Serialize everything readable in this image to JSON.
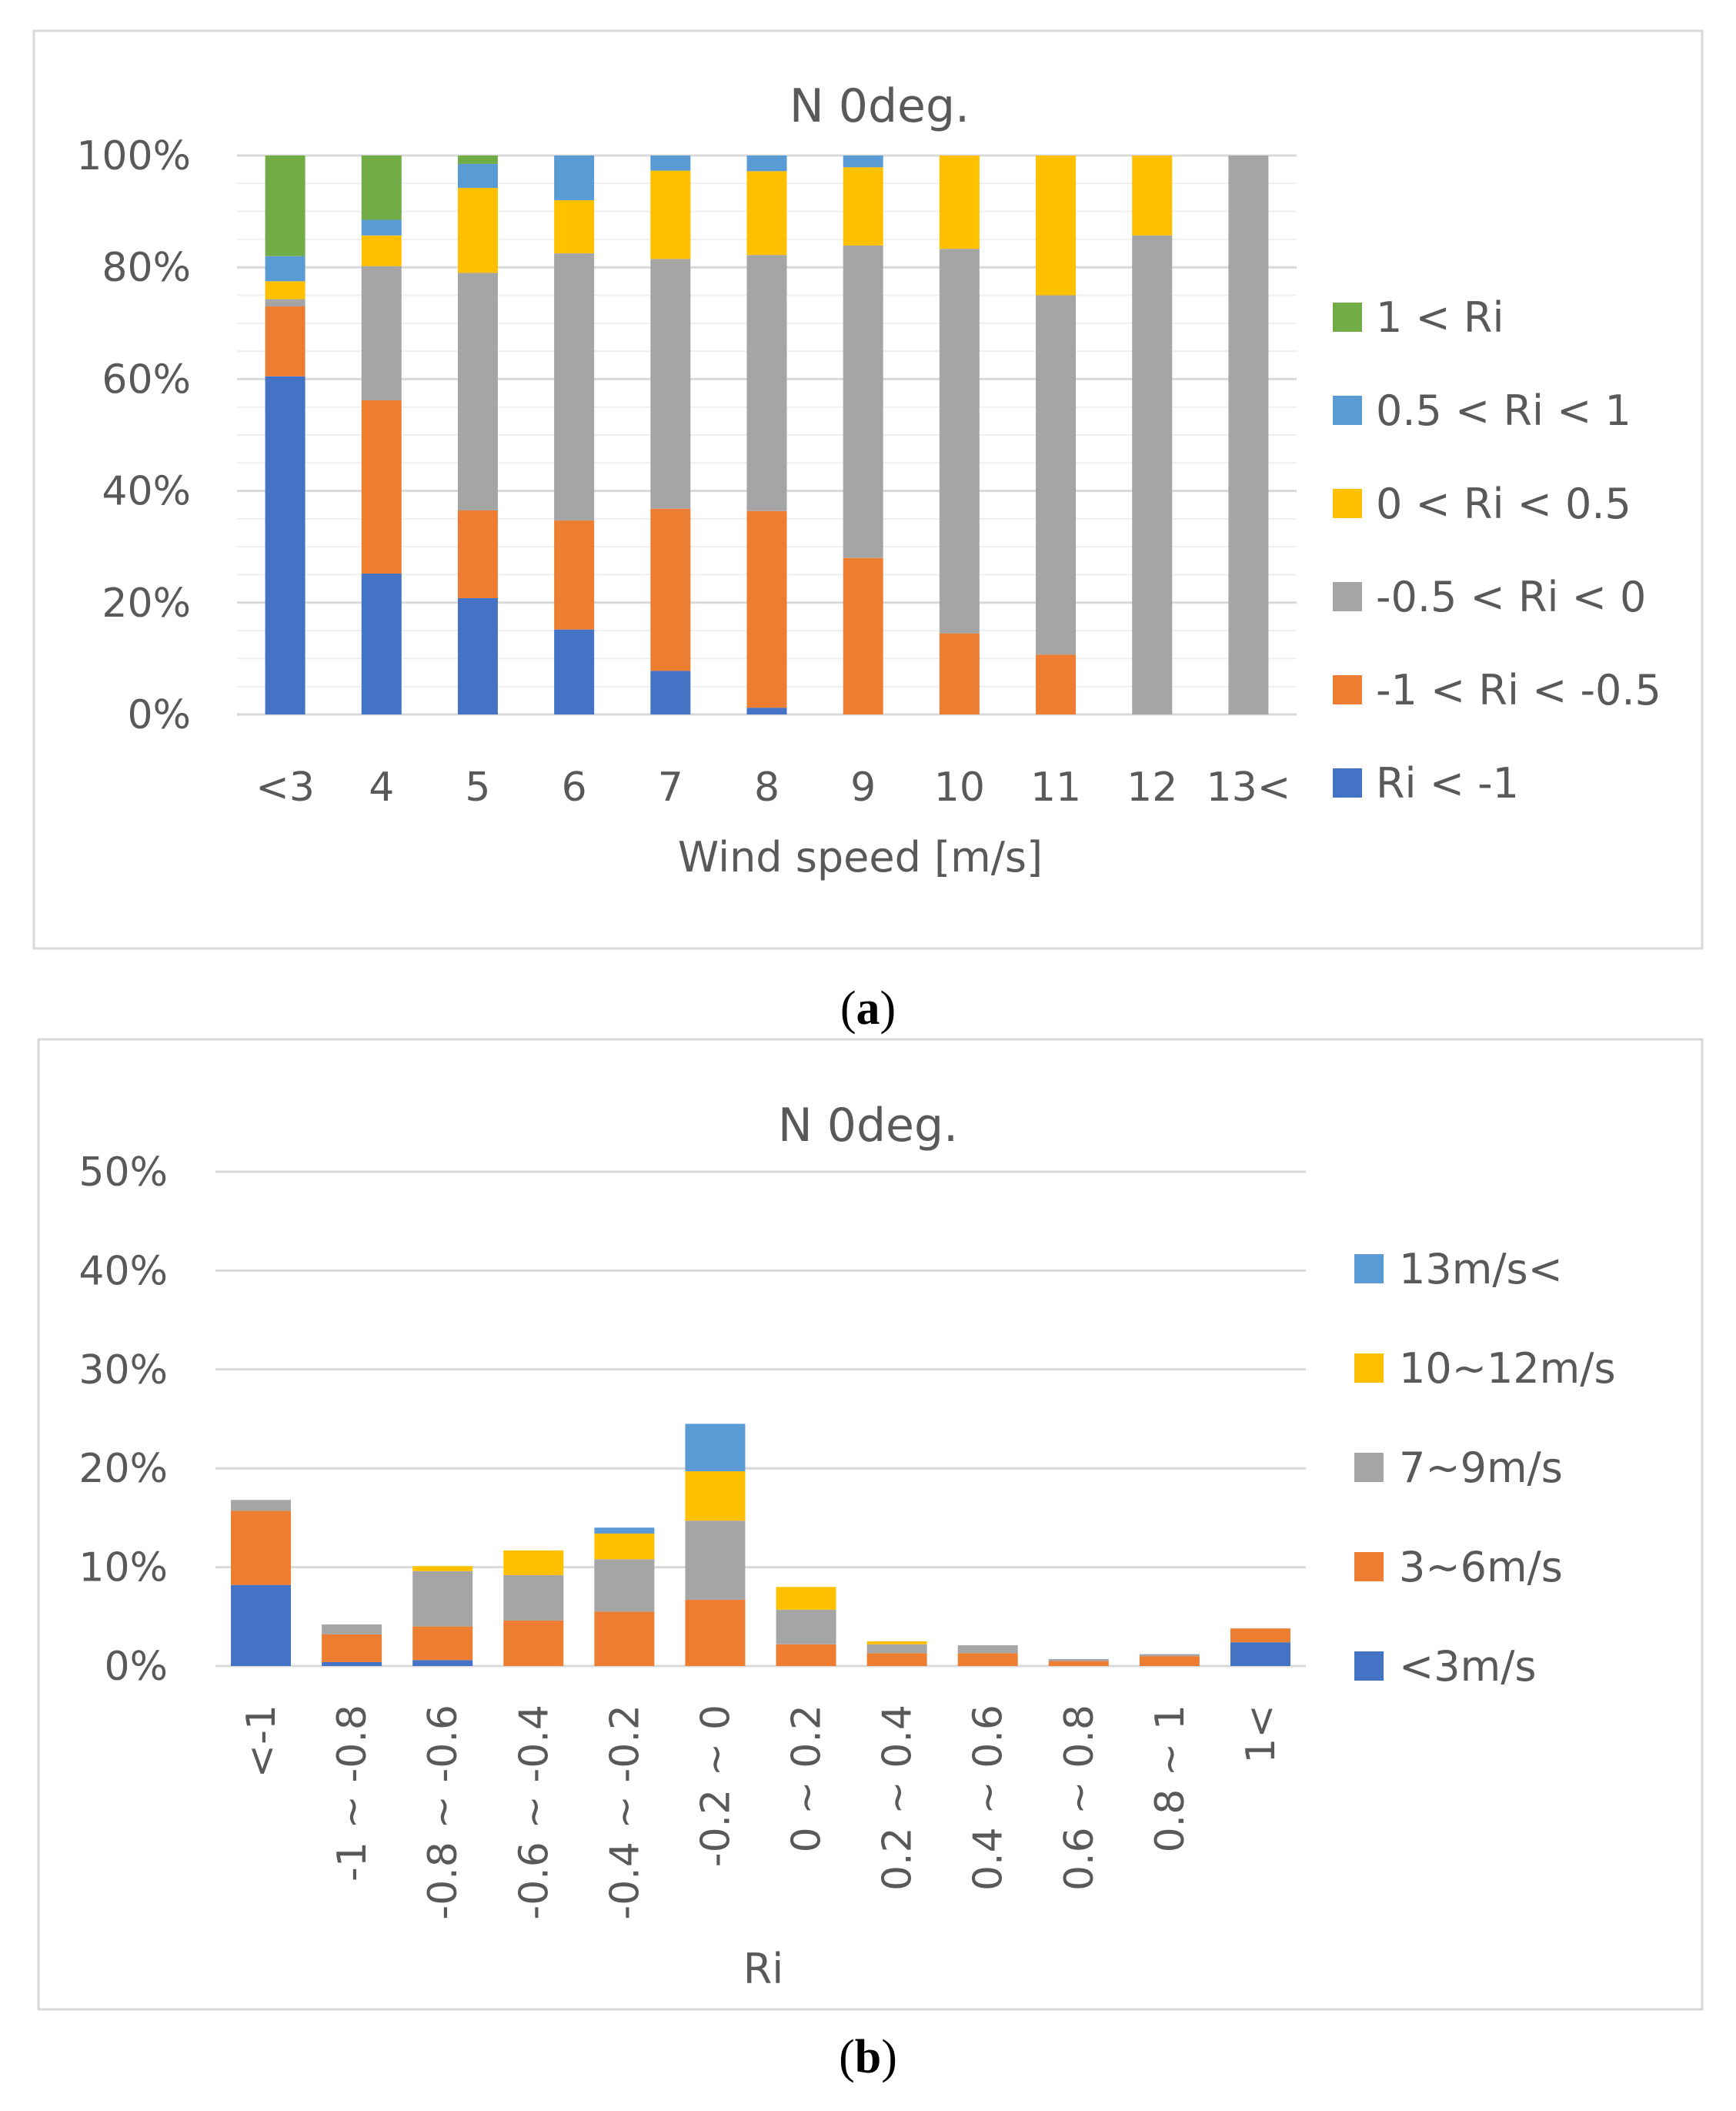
{
  "chart_data": [
    {
      "type": "bar",
      "stacked": true,
      "title": "N 0deg.",
      "xlabel": "Wind speed [m/s]",
      "ylabel": "",
      "ylim": [
        0,
        100
      ],
      "ytick_labels": [
        "0%",
        "20%",
        "40%",
        "60%",
        "80%",
        "100%"
      ],
      "categories": [
        "<3",
        "4",
        "5",
        "6",
        "7",
        "8",
        "9",
        "10",
        "11",
        "12",
        "13<"
      ],
      "legend_position": "right",
      "series": [
        {
          "name": "Ri < -1",
          "color": "#4472C4",
          "values": [
            60.5,
            25.2,
            20.8,
            15.2,
            7.8,
            1.2,
            0,
            0,
            0,
            0,
            0
          ]
        },
        {
          "name": "-1 < Ri < -0.5",
          "color": "#ED7D31",
          "values": [
            12.5,
            31.0,
            15.7,
            19.5,
            29.0,
            35.2,
            28.0,
            14.5,
            10.7,
            0,
            0
          ]
        },
        {
          "name": "-0.5 < Ri < 0",
          "color": "#A5A5A5",
          "values": [
            1.3,
            24.0,
            42.5,
            47.8,
            44.7,
            45.8,
            55.9,
            68.8,
            64.3,
            85.7,
            100.0
          ]
        },
        {
          "name": "0 < Ri < 0.5",
          "color": "#FFC000",
          "values": [
            3.2,
            5.5,
            15.2,
            9.5,
            15.8,
            15.0,
            14.0,
            16.7,
            25.0,
            14.3,
            0
          ]
        },
        {
          "name": "0.5 < Ri < 1",
          "color": "#5B9BD5",
          "values": [
            4.5,
            2.8,
            4.3,
            8.0,
            2.7,
            2.8,
            2.1,
            0,
            0,
            0,
            0
          ]
        },
        {
          "name": "1 < Ri",
          "color": "#70AD47",
          "values": [
            18.0,
            11.5,
            1.5,
            0,
            0,
            0,
            0,
            0,
            0,
            0,
            0
          ]
        }
      ]
    },
    {
      "type": "bar",
      "stacked": true,
      "title": "N 0deg.",
      "xlabel": "Ri",
      "ylabel": "",
      "ylim": [
        0,
        50
      ],
      "ytick_labels": [
        "0%",
        "10%",
        "20%",
        "30%",
        "40%",
        "50%"
      ],
      "categories": [
        "<-1",
        "-1 ~ -0.8",
        "-0.8 ~ -0.6",
        "-0.6 ~ -0.4",
        "-0.4 ~ -0.2",
        "-0.2 ~ 0",
        "0 ~ 0.2",
        "0.2 ~ 0.4",
        "0.4 ~ 0.6",
        "0.6 ~ 0.8",
        "0.8 ~ 1",
        "1<"
      ],
      "legend_position": "right",
      "series": [
        {
          "name": "<3m/s",
          "color": "#4472C4",
          "values": [
            8.2,
            0.4,
            0.6,
            0,
            0,
            0,
            0,
            0,
            0,
            0,
            0,
            2.4
          ]
        },
        {
          "name": "3~6m/s",
          "color": "#ED7D31",
          "values": [
            7.5,
            2.8,
            3.4,
            4.6,
            5.5,
            6.7,
            2.2,
            1.3,
            1.3,
            0.5,
            1.0,
            1.4
          ]
        },
        {
          "name": "7~9m/s",
          "color": "#A5A5A5",
          "values": [
            1.1,
            1.0,
            5.6,
            4.6,
            5.3,
            8.0,
            3.5,
            0.9,
            0.8,
            0.2,
            0.2,
            0
          ]
        },
        {
          "name": "10~12m/s",
          "color": "#FFC000",
          "values": [
            0,
            0,
            0.5,
            2.5,
            2.6,
            5.0,
            2.3,
            0.3,
            0,
            0,
            0,
            0
          ]
        },
        {
          "name": "13m/s<",
          "color": "#5B9BD5",
          "values": [
            0,
            0,
            0,
            0,
            0.6,
            4.8,
            0,
            0,
            0,
            0,
            0,
            0
          ]
        }
      ]
    }
  ],
  "captions": {
    "a": {
      "open": "(",
      "letter": "a",
      "close": ")"
    },
    "b": {
      "open": "(",
      "letter": "b",
      "close": ")"
    }
  }
}
